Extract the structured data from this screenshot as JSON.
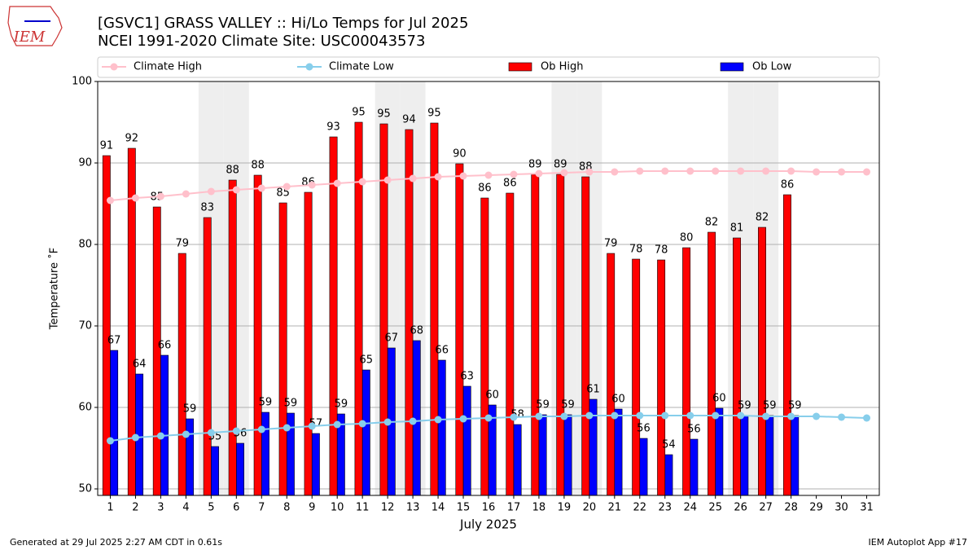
{
  "logo": "IEM",
  "footer_left": "Generated at 29 Jul 2025 2:27 AM CDT in 0.61s",
  "footer_right": "IEM Autoplot App #17",
  "chart_data": {
    "type": "bar",
    "title": "[GSVC1] GRASS VALLEY :: Hi/Lo Temps for Jul 2025",
    "subtitle": "NCEI 1991-2020 Climate Site: USC00043573",
    "x_label": "July 2025",
    "y_label": "Temperature ˚F",
    "x": [
      1,
      2,
      3,
      4,
      5,
      6,
      7,
      8,
      9,
      10,
      11,
      12,
      13,
      14,
      15,
      16,
      17,
      18,
      19,
      20,
      21,
      22,
      23,
      24,
      25,
      26,
      27,
      28,
      29,
      30,
      31
    ],
    "xlim": [
      0.5,
      31.5
    ],
    "xticks": [
      1,
      2,
      3,
      4,
      5,
      6,
      7,
      8,
      9,
      10,
      11,
      12,
      13,
      14,
      15,
      16,
      17,
      18,
      19,
      20,
      21,
      22,
      23,
      24,
      25,
      26,
      27,
      28,
      29,
      30,
      31
    ],
    "ylim": [
      49.2,
      100
    ],
    "yticks": [
      50,
      60,
      70,
      80,
      90,
      100
    ],
    "grid": true,
    "shaded_days": [
      5,
      6,
      12,
      13,
      19,
      20,
      26,
      27
    ],
    "shade_color": "#eeeeee",
    "series": [
      {
        "name": "Climate High",
        "kind": "line",
        "color": "#ffc0cb",
        "values": [
          85.4,
          85.7,
          85.9,
          86.2,
          86.5,
          86.7,
          86.9,
          87.1,
          87.3,
          87.5,
          87.7,
          87.9,
          88.1,
          88.3,
          88.4,
          88.5,
          88.6,
          88.7,
          88.8,
          88.9,
          88.9,
          89.0,
          89.0,
          89.0,
          89.0,
          89.0,
          89.0,
          89.0,
          88.9,
          88.9,
          88.9
        ]
      },
      {
        "name": "Climate Low",
        "kind": "line",
        "color": "#87ceeb",
        "values": [
          55.9,
          56.3,
          56.5,
          56.7,
          56.9,
          57.1,
          57.3,
          57.5,
          57.7,
          57.9,
          58.0,
          58.2,
          58.3,
          58.5,
          58.6,
          58.7,
          58.8,
          58.9,
          58.9,
          59.0,
          59.0,
          59.0,
          59.0,
          59.0,
          59.0,
          59.0,
          58.9,
          58.9,
          58.9,
          58.8,
          58.7
        ]
      },
      {
        "name": "Ob High",
        "kind": "bar",
        "color": "#ff0000",
        "values": [
          90.9,
          91.8,
          84.6,
          78.9,
          83.3,
          87.9,
          88.5,
          85.1,
          86.4,
          93.2,
          95.0,
          94.8,
          94.1,
          94.9,
          89.9,
          85.7,
          86.3,
          88.6,
          88.6,
          88.3,
          78.9,
          78.2,
          78.1,
          79.6,
          81.5,
          80.8,
          82.1,
          86.1,
          null,
          null,
          null
        ],
        "value_labels": [
          "91",
          "92",
          "85",
          "79",
          "83",
          "88",
          "88",
          "85",
          "86",
          "93",
          "95",
          "95",
          "94",
          "95",
          "90",
          "86",
          "86",
          "89",
          "89",
          "88",
          "79",
          "78",
          "78",
          "80",
          "82",
          "81",
          "82",
          "86",
          null,
          null,
          null
        ]
      },
      {
        "name": "Ob Low",
        "kind": "bar",
        "color": "#0000ff",
        "values": [
          67.0,
          64.1,
          66.4,
          58.6,
          55.2,
          55.6,
          59.4,
          59.3,
          56.8,
          59.2,
          64.6,
          67.3,
          68.2,
          65.8,
          62.6,
          60.3,
          57.9,
          59.1,
          59.1,
          61.0,
          59.8,
          56.2,
          54.2,
          56.1,
          59.9,
          59.0,
          59.0,
          59.0,
          null,
          null,
          null
        ],
        "value_labels": [
          "67",
          "64",
          "66",
          "59",
          "55",
          "56",
          "59",
          "59",
          "57",
          "59",
          "65",
          "67",
          "68",
          "66",
          "63",
          "60",
          "58",
          "59",
          "59",
          "61",
          "60",
          "56",
          "54",
          "56",
          "60",
          "59",
          "59",
          "59",
          null,
          null,
          null
        ]
      }
    ]
  }
}
